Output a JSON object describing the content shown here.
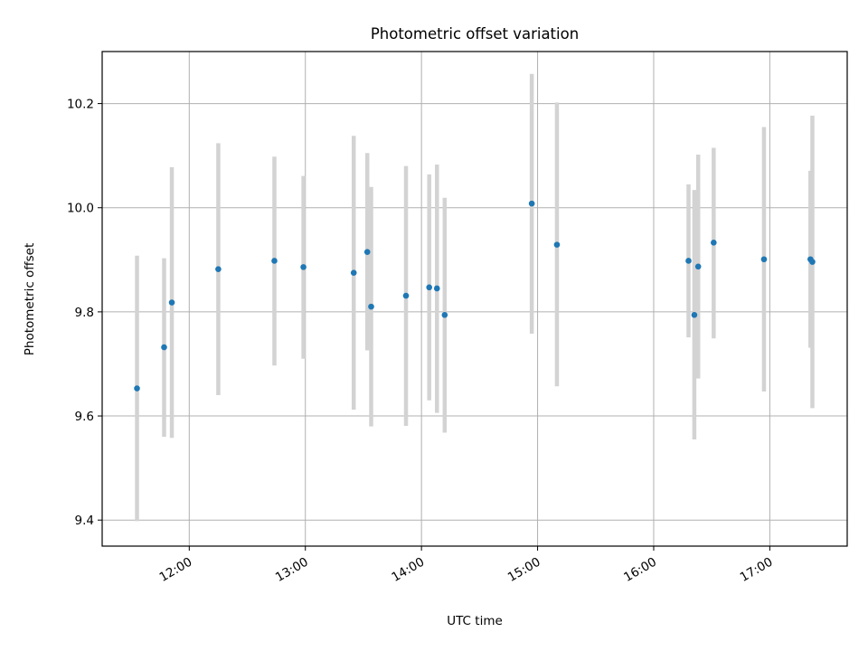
{
  "chart_data": {
    "type": "scatter",
    "title": "Photometric offset variation",
    "xlabel": "UTC time",
    "ylabel": "Photometric offset",
    "x_axis_kind": "time of day (UTC)",
    "xlim": [
      "11:15",
      "17:40"
    ],
    "ylim": [
      9.35,
      10.3
    ],
    "grid": true,
    "x_ticks": [
      "12:00",
      "13:00",
      "14:00",
      "15:00",
      "16:00",
      "17:00"
    ],
    "y_ticks": [
      "9.4",
      "9.6",
      "9.8",
      "10.0",
      "10.2"
    ],
    "marker_color": "#1f77b4",
    "errorbar_color": "#d3d3d3",
    "points": [
      {
        "x": "11:33",
        "y": 9.653,
        "ylow": 9.398,
        "yhigh": 9.908
      },
      {
        "x": "11:47",
        "y": 9.732,
        "ylow": 9.56,
        "yhigh": 9.903
      },
      {
        "x": "11:51",
        "y": 9.818,
        "ylow": 9.558,
        "yhigh": 10.078
      },
      {
        "x": "12:15",
        "y": 9.882,
        "ylow": 9.64,
        "yhigh": 10.124
      },
      {
        "x": "12:44",
        "y": 9.898,
        "ylow": 9.697,
        "yhigh": 10.098
      },
      {
        "x": "12:59",
        "y": 9.886,
        "ylow": 9.71,
        "yhigh": 10.061
      },
      {
        "x": "13:25",
        "y": 9.875,
        "ylow": 9.612,
        "yhigh": 10.138
      },
      {
        "x": "13:32",
        "y": 9.915,
        "ylow": 9.726,
        "yhigh": 10.105
      },
      {
        "x": "13:34",
        "y": 9.81,
        "ylow": 9.58,
        "yhigh": 10.04
      },
      {
        "x": "13:52",
        "y": 9.831,
        "ylow": 9.581,
        "yhigh": 10.08
      },
      {
        "x": "14:04",
        "y": 9.847,
        "ylow": 9.63,
        "yhigh": 10.064
      },
      {
        "x": "14:08",
        "y": 9.845,
        "ylow": 9.606,
        "yhigh": 10.083
      },
      {
        "x": "14:12",
        "y": 9.794,
        "ylow": 9.568,
        "yhigh": 10.019
      },
      {
        "x": "14:57",
        "y": 10.008,
        "ylow": 9.758,
        "yhigh": 10.257
      },
      {
        "x": "15:10",
        "y": 9.929,
        "ylow": 9.657,
        "yhigh": 10.202
      },
      {
        "x": "16:18",
        "y": 9.898,
        "ylow": 9.751,
        "yhigh": 10.045
      },
      {
        "x": "16:21",
        "y": 9.794,
        "ylow": 9.555,
        "yhigh": 10.034
      },
      {
        "x": "16:23",
        "y": 9.887,
        "ylow": 9.672,
        "yhigh": 10.102
      },
      {
        "x": "16:31",
        "y": 9.933,
        "ylow": 9.749,
        "yhigh": 10.115
      },
      {
        "x": "16:57",
        "y": 9.901,
        "ylow": 9.647,
        "yhigh": 10.155
      },
      {
        "x": "17:21",
        "y": 9.901,
        "ylow": 9.731,
        "yhigh": 10.071
      },
      {
        "x": "17:22",
        "y": 9.896,
        "ylow": 9.615,
        "yhigh": 10.177
      }
    ]
  }
}
